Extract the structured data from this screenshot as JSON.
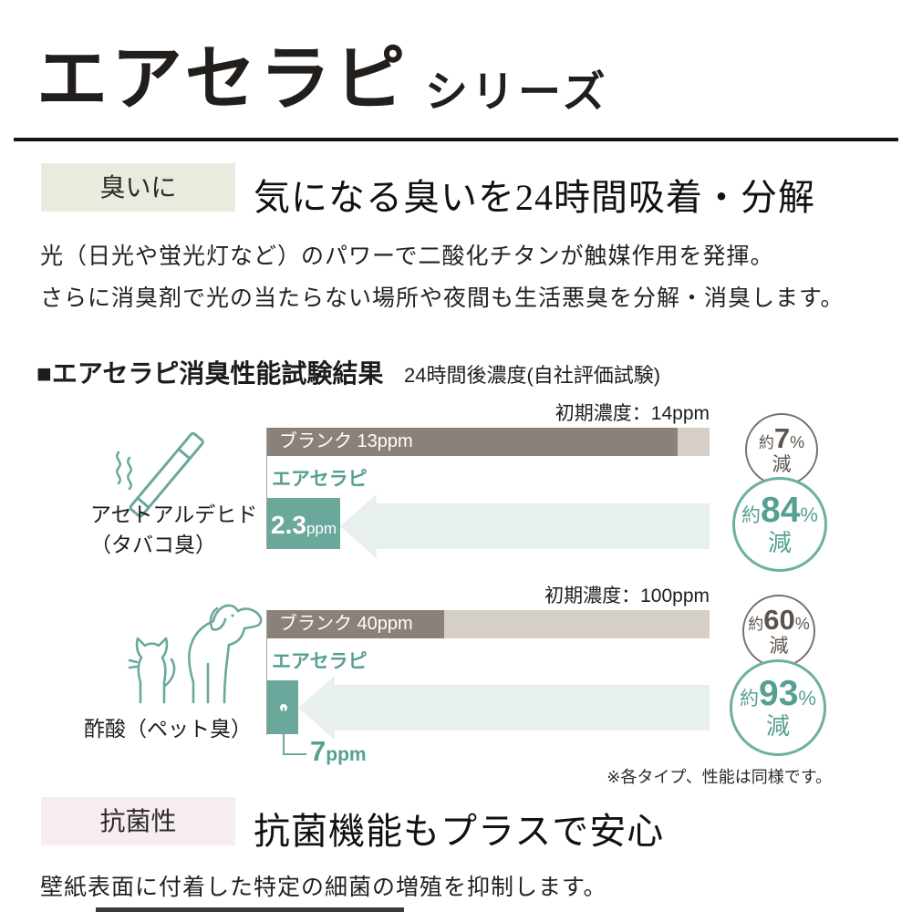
{
  "header": {
    "title": "エアセラピ",
    "subtitle": "シリーズ"
  },
  "odor_section": {
    "tag": "臭いに",
    "headline": "気になる臭いを24時間吸着・分解",
    "body1": "光（日光や蛍光灯など）のパワーで二酸化チタンが触媒作用を発揮。",
    "body2": "さらに消臭剤で光の当たらない場所や夜間も生活悪臭を分解・消臭します。"
  },
  "results": {
    "heading": "■エアセラピ消臭性能試験結果",
    "subheading": "24時間後濃度(自社評価試験)",
    "footnote": "※各タイプ、性能は同様です。"
  },
  "chart_data": [
    {
      "type": "bar",
      "title": "アセトアルデヒド（タバコ臭）消臭試験",
      "odor": "アセトアルデヒド",
      "odor_note": "（タバコ臭）",
      "icon": "cigarette-icon",
      "initial_label": "初期濃度：14ppm",
      "initial_concentration_ppm": 14,
      "categories": [
        "ブランク",
        "エアセラピ"
      ],
      "values": [
        13,
        2.3
      ],
      "unit": "ppm",
      "xlim": [
        0,
        14
      ],
      "blank_bar_label": "ブランク 13ppm",
      "product_label": "エアセラピ",
      "product_value": "2.3",
      "product_unit": "ppm",
      "blank_reduction": {
        "prefix": "約",
        "value": "7",
        "percent": "%",
        "suffix": "減"
      },
      "product_reduction": {
        "prefix": "約",
        "value": "84",
        "percent": "%",
        "suffix": "減"
      }
    },
    {
      "type": "bar",
      "title": "酢酸（ペット臭）消臭試験",
      "odor": "酢酸（ペット臭）",
      "odor_note": "",
      "icon": "dog-cat-icon",
      "initial_label": "初期濃度：100ppm",
      "initial_concentration_ppm": 100,
      "categories": [
        "ブランク",
        "エアセラピ"
      ],
      "values": [
        40,
        7
      ],
      "unit": "ppm",
      "xlim": [
        0,
        100
      ],
      "blank_bar_label": "ブランク 40ppm",
      "product_label": "エアセラピ",
      "product_value": "7",
      "product_unit": "ppm",
      "blank_reduction": {
        "prefix": "約",
        "value": "60",
        "percent": "%",
        "suffix": "減"
      },
      "product_reduction": {
        "prefix": "約",
        "value": "93",
        "percent": "%",
        "suffix": "減"
      }
    }
  ],
  "antibacterial_section": {
    "tag": "抗菌性",
    "headline": "抗菌機能もプラスで安心",
    "body": "壁紙表面に付着した特定の細菌の増殖を抑制します。"
  },
  "colors": {
    "teal": "#6aa89c",
    "teal_text": "#55a093",
    "teal_border": "#6cb0a3",
    "arrow": "#e7f0ee",
    "bar_dark": "#8a817a",
    "bar_light": "#d5cfc8",
    "brown_border": "#7b7069",
    "brown_text": "#5e544b",
    "tag_odor_bg": "#e9ebde",
    "tag_anti_bg": "#f7ecf2"
  }
}
